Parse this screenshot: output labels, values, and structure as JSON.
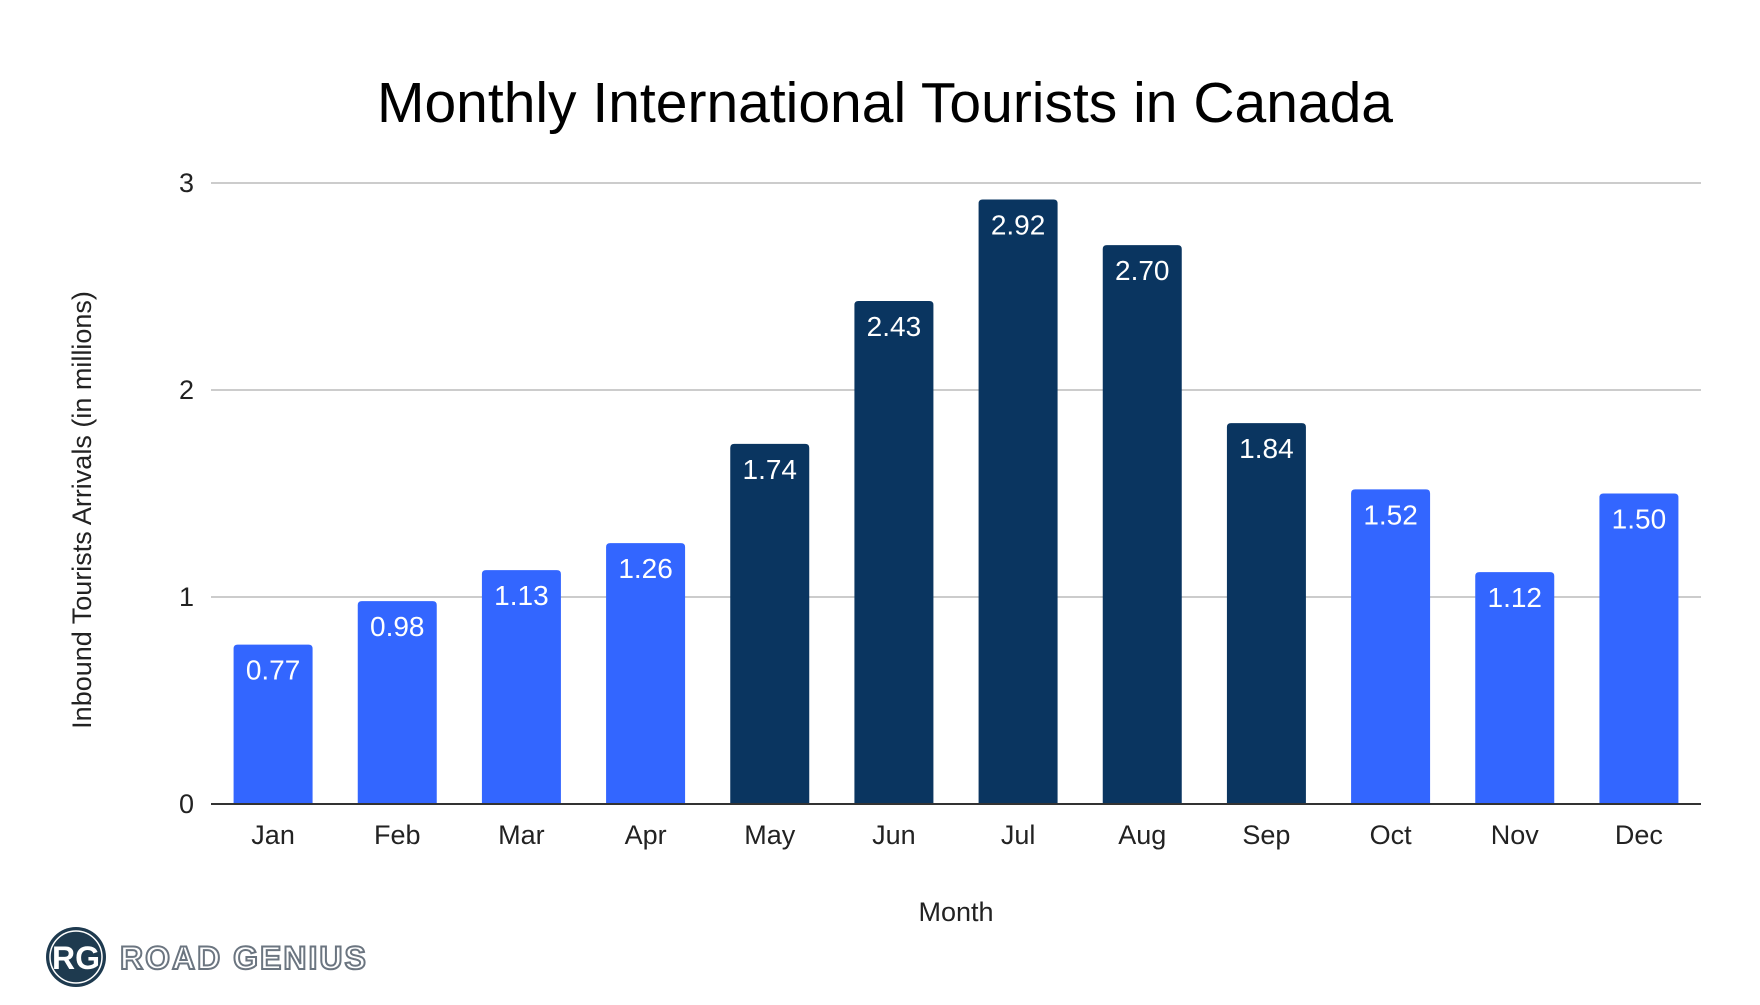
{
  "chart_data": {
    "type": "bar",
    "title": "Monthly International Tourists in Canada",
    "xlabel": "Month",
    "ylabel": "Inbound Tourists Arrivals (in millions)",
    "ylim": [
      0,
      3
    ],
    "yticks": [
      0,
      1,
      2,
      3
    ],
    "grid": true,
    "categories": [
      "Jan",
      "Feb",
      "Mar",
      "Apr",
      "May",
      "Jun",
      "Jul",
      "Aug",
      "Sep",
      "Oct",
      "Nov",
      "Dec"
    ],
    "values": [
      0.77,
      0.98,
      1.13,
      1.26,
      1.74,
      2.43,
      2.92,
      2.7,
      1.84,
      1.52,
      1.12,
      1.5
    ],
    "data_labels": [
      "0.77",
      "0.98",
      "1.13",
      "1.26",
      "1.74",
      "2.43",
      "2.92",
      "2.70",
      "1.84",
      "1.52",
      "1.12",
      "1.50"
    ],
    "bar_colors": [
      "#3366ff",
      "#3366ff",
      "#3366ff",
      "#3366ff",
      "#0a3560",
      "#0a3560",
      "#0a3560",
      "#0a3560",
      "#0a3560",
      "#3366ff",
      "#3366ff",
      "#3366ff"
    ]
  },
  "logo": {
    "initials": "RG",
    "text": "ROAD GENIUS",
    "color": "#1e3a4f",
    "text_color": "#6b7580"
  }
}
